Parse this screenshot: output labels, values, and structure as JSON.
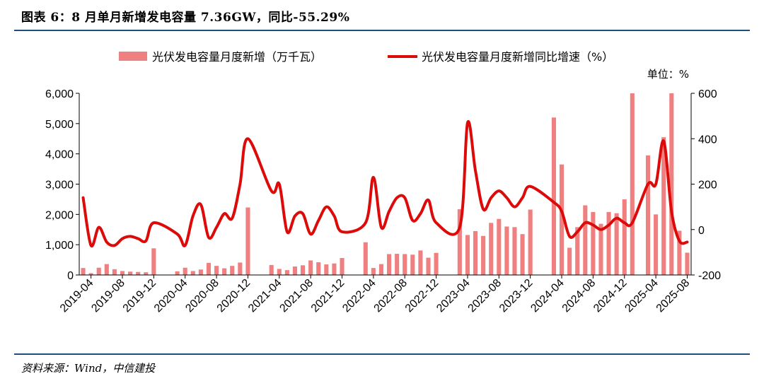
{
  "header": {
    "title": "图表 6：8 月单月新增发电容量 7.36GW，同比-55.29%"
  },
  "footer": {
    "source": "资料来源：Wind，中信建投"
  },
  "chart_data": {
    "type": "bar",
    "unit_label": "单位：%",
    "legend": [
      "光伏发电容量月度新增（万千瓦）",
      "光伏发电容量月度新增同比增速（%）"
    ],
    "colors": {
      "bar": "#f08080",
      "line": "#dd0a0a"
    },
    "left_axis": {
      "min": 0,
      "max": 6000,
      "ticks": [
        "0",
        "1,000",
        "2,000",
        "3,000",
        "4,000",
        "5,000",
        "6,000"
      ]
    },
    "right_axis": {
      "min": -200,
      "max": 600,
      "ticks": [
        "-200",
        "0",
        "200",
        "400",
        "600"
      ]
    },
    "x_tick_labels": [
      "2019-04",
      "2019-08",
      "2019-12",
      "2020-04",
      "2020-08",
      "2020-12",
      "2021-04",
      "2021-08",
      "2021-12",
      "2022-04",
      "2022-08",
      "2022-12",
      "2023-04",
      "2023-08",
      "2023-12",
      "2024-04",
      "2024-08",
      "2024-12",
      "2025-04",
      "2025-08"
    ],
    "x_tick_months": [
      "2019-04",
      "2019-08",
      "2019-12",
      "2020-04",
      "2020-08",
      "2020-12",
      "2021-04",
      "2021-08",
      "2021-12",
      "2022-04",
      "2022-08",
      "2022-12",
      "2023-04",
      "2023-08",
      "2023-12",
      "2024-04",
      "2024-08",
      "2024-12",
      "2025-04",
      "2025-08"
    ],
    "months": [
      "2019-03",
      "2019-04",
      "2019-05",
      "2019-06",
      "2019-07",
      "2019-08",
      "2019-09",
      "2019-10",
      "2019-11",
      "2019-12",
      "2020-01",
      "2020-02",
      "2020-03",
      "2020-04",
      "2020-05",
      "2020-06",
      "2020-07",
      "2020-08",
      "2020-09",
      "2020-10",
      "2020-11",
      "2020-12",
      "2021-01",
      "2021-02",
      "2021-03",
      "2021-04",
      "2021-05",
      "2021-06",
      "2021-07",
      "2021-08",
      "2021-09",
      "2021-10",
      "2021-11",
      "2021-12",
      "2022-01",
      "2022-02",
      "2022-03",
      "2022-04",
      "2022-05",
      "2022-06",
      "2022-07",
      "2022-08",
      "2022-09",
      "2022-10",
      "2022-11",
      "2022-12",
      "2023-01",
      "2023-02",
      "2023-03",
      "2023-04",
      "2023-05",
      "2023-06",
      "2023-07",
      "2023-08",
      "2023-09",
      "2023-10",
      "2023-11",
      "2023-12",
      "2024-01",
      "2024-02",
      "2024-03",
      "2024-04",
      "2024-05",
      "2024-06",
      "2024-07",
      "2024-08",
      "2024-09",
      "2024-10",
      "2024-11",
      "2024-12",
      "2025-01",
      "2025-02",
      "2025-03",
      "2025-04",
      "2025-05",
      "2025-06",
      "2025-07",
      "2025-08"
    ],
    "bar_values": [
      230,
      60,
      240,
      360,
      190,
      130,
      110,
      100,
      90,
      880,
      0,
      0,
      120,
      240,
      130,
      180,
      400,
      300,
      220,
      300,
      410,
      2230,
      0,
      0,
      330,
      200,
      160,
      280,
      320,
      480,
      420,
      350,
      380,
      560,
      0,
      0,
      1080,
      230,
      360,
      690,
      700,
      690,
      670,
      810,
      570,
      730,
      0,
      0,
      2170,
      1320,
      1450,
      1290,
      1720,
      1850,
      1600,
      1580,
      1350,
      2160,
      0,
      0,
      5200,
      3650,
      900,
      1580,
      2300,
      2080,
      1690,
      2080,
      2040,
      2500,
      6000,
      0,
      3950,
      2000,
      4550,
      6000,
      1460,
      736
    ],
    "growth_values": [
      140,
      -70,
      10,
      -55,
      -70,
      -40,
      -30,
      -40,
      -50,
      30,
      null,
      null,
      -20,
      -70,
      60,
      110,
      -35,
      10,
      70,
      50,
      200,
      400,
      null,
      null,
      170,
      200,
      -10,
      60,
      70,
      -20,
      40,
      100,
      60,
      -10,
      null,
      null,
      30,
      230,
      10,
      80,
      140,
      140,
      40,
      70,
      130,
      30,
      null,
      null,
      10,
      470,
      260,
      90,
      140,
      170,
      140,
      100,
      140,
      190,
      null,
      null,
      120,
      80,
      -30,
      -10,
      30,
      20,
      0,
      20,
      50,
      30,
      30,
      null,
      200,
      200,
      390,
      80,
      -50,
      -55
    ]
  }
}
